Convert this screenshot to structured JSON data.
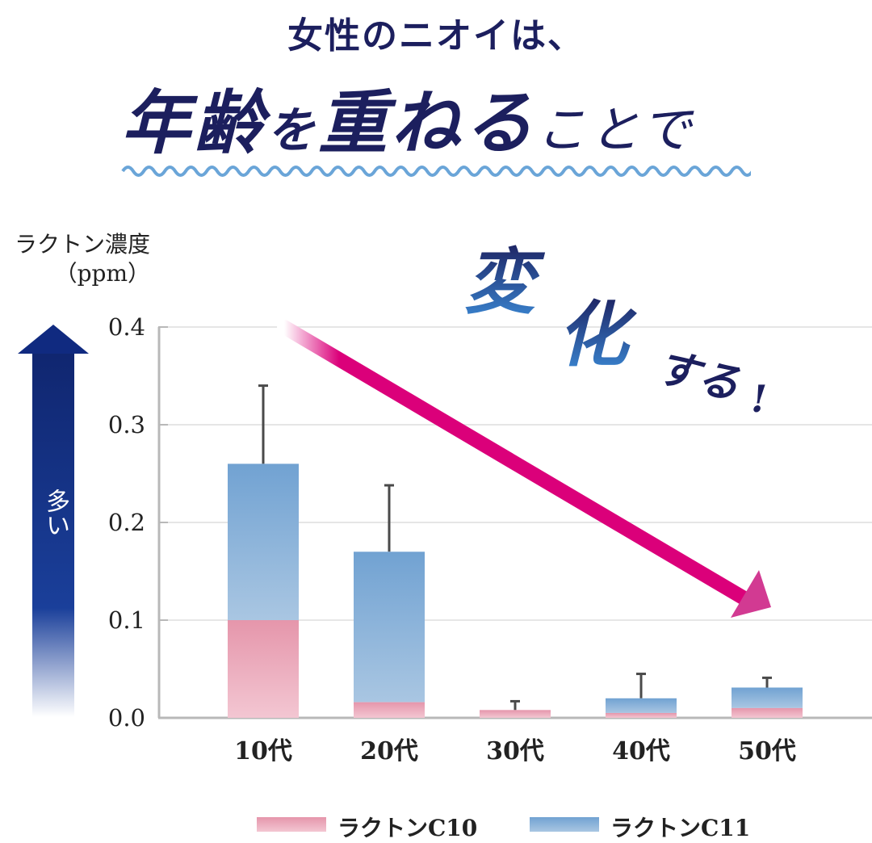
{
  "header": {
    "line1": "女性のニオイは、",
    "line2_big1": "年齢",
    "line2_small1": "を",
    "line2_big2": "重ねる",
    "line2_small2": "ことで"
  },
  "callout": {
    "char1": "変",
    "char2": "化",
    "suffix": "する",
    "exclaim": "!"
  },
  "axis": {
    "ylabel_line1": "ラクトン濃度",
    "ylabel_line2": "（ppm）",
    "ticks": [
      "0.4",
      "0.3",
      "0.2",
      "0.1",
      "0.0"
    ],
    "arrow_label": "多い"
  },
  "legend": {
    "c10": "ラクトンC10",
    "c11": "ラクトンC11"
  },
  "colors": {
    "title_navy": "#1c1f5e",
    "c10_pink": "#e89aae",
    "c11_blue": "#74a4d3",
    "trend_magenta": "#db007a",
    "wave_blue": "#6aa5d8",
    "arrow_navy": "#102a80"
  },
  "chart_data": {
    "type": "bar",
    "stacked": true,
    "title": "女性のニオイは、年齢を重ねることで変化する!",
    "xlabel": "",
    "ylabel": "ラクトン濃度（ppm）",
    "ylim": [
      0,
      0.4
    ],
    "yticks": [
      0.0,
      0.1,
      0.2,
      0.3,
      0.4
    ],
    "grid": true,
    "categories": [
      "10代",
      "20代",
      "30代",
      "40代",
      "50代"
    ],
    "series": [
      {
        "name": "ラクトンC10",
        "values": [
          0.1,
          0.016,
          0.008,
          0.005,
          0.01
        ]
      },
      {
        "name": "ラクトンC11",
        "values": [
          0.16,
          0.154,
          0.0,
          0.015,
          0.021
        ]
      }
    ],
    "totals": [
      0.26,
      0.17,
      0.008,
      0.02,
      0.031
    ],
    "error_bar_tops": [
      0.34,
      0.238,
      0.017,
      0.045,
      0.041
    ],
    "legend_position": "bottom",
    "annotations": [
      "decreasing trend arrow from 10代 to 50代",
      "多い (more) arrow pointing up along y-axis"
    ]
  }
}
